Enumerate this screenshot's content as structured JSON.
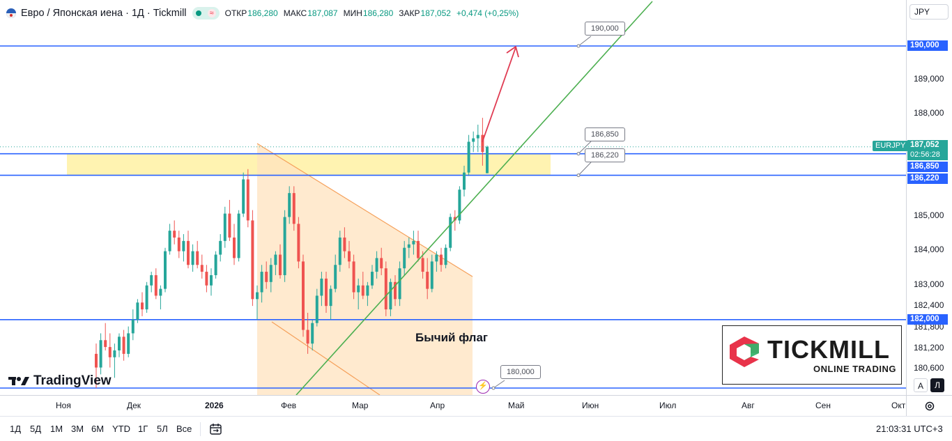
{
  "legend": {
    "title": "Евро / Японская иена · 1Д · Tickmill",
    "open_label": "ОТКР",
    "open": "186,280",
    "high_label": "МАКС",
    "high": "187,087",
    "low_label": "МИН",
    "low": "186,280",
    "close_label": "ЗАКР",
    "close": "187,052",
    "change": "+0,474 (+0,25%)",
    "flag_glyph": "≈"
  },
  "currency_button": "JPY",
  "price_scale": {
    "ticks": [
      "189,000",
      "188,000",
      "185,000",
      "184,000",
      "183,000",
      "182,400",
      "181,800",
      "181,200",
      "180,600"
    ]
  },
  "badges": {
    "b190": "190,000",
    "symbol": "EURJPY",
    "last_price": "187,052",
    "countdown": "02:56:28",
    "b186850": "186,850",
    "b186220": "186,220",
    "b182000": "182,000"
  },
  "callouts": {
    "c190": "190,000",
    "c186850": "186,850",
    "c186220": "186,220",
    "c180": "180,000"
  },
  "annotation": "Бычий флаг",
  "brand": {
    "tradingview": "TradingView",
    "tickmill": "TICKMILL",
    "tickmill_sub": "ONLINE TRADING"
  },
  "time_axis": [
    "Ноя",
    "Дек",
    "2026",
    "Фев",
    "Мар",
    "Апр",
    "Май",
    "Июн",
    "Июл",
    "Авг",
    "Сен",
    "Окт"
  ],
  "scale_modes": {
    "auto": "А",
    "log": "Л"
  },
  "bottom": {
    "ranges": [
      "1Д",
      "5Д",
      "1М",
      "3М",
      "6М",
      "YTD",
      "1Г",
      "5Л",
      "Все"
    ],
    "clock": "21:03:31 UTC+3"
  },
  "colors": {
    "up": "#26a69a",
    "down": "#ef5350",
    "level_line": "#2962ff",
    "trend_line": "#4caf50",
    "arrow": "#e03b52",
    "zone": "#fff2a8",
    "flag_fill": "#ffe3bf",
    "badge_blue": "#2962ff",
    "badge_green": "#26a69a"
  },
  "chart_data": {
    "type": "candlestick",
    "symbol": "EURJPY",
    "interval": "1Д",
    "price_range": [
      179.8,
      191.3
    ],
    "levels": [
      190.0,
      186.85,
      186.22,
      182.0,
      180.0
    ],
    "candles": [
      [
        181.0,
        181.3,
        180.0,
        180.6
      ],
      [
        180.6,
        181.6,
        180.4,
        181.4
      ],
      [
        181.4,
        181.9,
        181.1,
        181.2
      ],
      [
        181.2,
        181.6,
        180.6,
        180.9
      ],
      [
        180.9,
        181.3,
        180.3,
        181.1
      ],
      [
        181.1,
        181.6,
        180.9,
        181.5
      ],
      [
        181.5,
        181.7,
        180.8,
        181.0
      ],
      [
        181.0,
        181.8,
        180.9,
        181.6
      ],
      [
        181.6,
        182.3,
        181.4,
        182.0
      ],
      [
        182.0,
        182.6,
        181.9,
        182.5
      ],
      [
        182.5,
        182.8,
        182.1,
        182.3
      ],
      [
        182.3,
        183.1,
        182.2,
        183.0
      ],
      [
        183.0,
        183.4,
        182.8,
        183.3
      ],
      [
        183.3,
        183.5,
        182.6,
        182.7
      ],
      [
        182.7,
        183.0,
        182.3,
        182.9
      ],
      [
        182.9,
        184.1,
        182.8,
        184.0
      ],
      [
        184.0,
        184.8,
        183.9,
        184.6
      ],
      [
        184.6,
        184.9,
        184.2,
        184.4
      ],
      [
        184.4,
        184.6,
        183.8,
        184.0
      ],
      [
        184.0,
        184.5,
        183.7,
        184.3
      ],
      [
        184.3,
        184.6,
        183.5,
        183.6
      ],
      [
        183.6,
        184.2,
        183.4,
        184.0
      ],
      [
        184.0,
        184.3,
        183.5,
        183.6
      ],
      [
        183.6,
        183.9,
        183.2,
        183.4
      ],
      [
        183.4,
        183.6,
        182.8,
        183.0
      ],
      [
        183.0,
        183.5,
        182.7,
        183.3
      ],
      [
        183.3,
        184.0,
        183.2,
        183.9
      ],
      [
        183.9,
        184.5,
        183.7,
        184.3
      ],
      [
        184.3,
        185.3,
        184.1,
        185.1
      ],
      [
        185.1,
        185.5,
        184.3,
        184.4
      ],
      [
        184.4,
        184.8,
        183.6,
        183.8
      ],
      [
        183.8,
        185.2,
        183.7,
        185.1
      ],
      [
        185.1,
        186.3,
        185.0,
        186.1
      ],
      [
        186.1,
        186.4,
        184.7,
        184.9
      ],
      [
        184.9,
        185.2,
        182.4,
        182.6
      ],
      [
        182.6,
        183.0,
        182.0,
        182.8
      ],
      [
        182.8,
        183.6,
        182.5,
        183.4
      ],
      [
        183.4,
        183.7,
        182.9,
        183.1
      ],
      [
        183.1,
        183.8,
        182.8,
        183.6
      ],
      [
        183.6,
        184.0,
        183.3,
        183.9
      ],
      [
        183.9,
        184.2,
        183.2,
        183.3
      ],
      [
        183.3,
        185.2,
        183.1,
        185.0
      ],
      [
        185.0,
        185.9,
        184.8,
        185.7
      ],
      [
        185.7,
        185.9,
        184.6,
        184.8
      ],
      [
        184.8,
        185.0,
        183.5,
        183.7
      ],
      [
        183.7,
        183.9,
        181.5,
        181.7
      ],
      [
        181.7,
        182.2,
        181.0,
        181.3
      ],
      [
        181.3,
        182.0,
        181.1,
        181.9
      ],
      [
        181.9,
        182.9,
        181.8,
        182.7
      ],
      [
        182.7,
        183.4,
        182.4,
        183.2
      ],
      [
        183.2,
        183.4,
        182.2,
        182.4
      ],
      [
        182.4,
        183.0,
        182.0,
        182.9
      ],
      [
        182.9,
        183.9,
        182.8,
        183.6
      ],
      [
        183.6,
        184.6,
        183.4,
        184.4
      ],
      [
        184.4,
        184.7,
        183.8,
        184.0
      ],
      [
        184.0,
        184.3,
        183.5,
        183.7
      ],
      [
        183.7,
        183.9,
        182.6,
        182.8
      ],
      [
        182.8,
        183.2,
        182.3,
        183.0
      ],
      [
        183.0,
        183.4,
        182.6,
        182.7
      ],
      [
        182.7,
        183.1,
        182.4,
        183.0
      ],
      [
        183.0,
        183.6,
        182.9,
        183.4
      ],
      [
        183.4,
        184.0,
        183.2,
        183.8
      ],
      [
        183.8,
        184.1,
        183.3,
        183.5
      ],
      [
        183.5,
        183.7,
        182.1,
        182.3
      ],
      [
        182.3,
        183.2,
        182.1,
        183.1
      ],
      [
        183.1,
        183.3,
        182.4,
        182.6
      ],
      [
        182.6,
        183.7,
        182.4,
        183.5
      ],
      [
        183.5,
        184.3,
        183.3,
        184.1
      ],
      [
        184.1,
        184.4,
        183.8,
        184.2
      ],
      [
        184.2,
        184.6,
        183.9,
        184.3
      ],
      [
        184.3,
        184.6,
        183.7,
        183.8
      ],
      [
        183.8,
        184.0,
        183.2,
        183.4
      ],
      [
        183.4,
        183.8,
        182.6,
        182.9
      ],
      [
        182.9,
        183.9,
        182.8,
        183.7
      ],
      [
        183.7,
        184.0,
        183.4,
        183.9
      ],
      [
        183.9,
        184.1,
        183.4,
        183.6
      ],
      [
        183.6,
        184.2,
        183.5,
        184.1
      ],
      [
        184.1,
        185.1,
        184.0,
        185.0
      ],
      [
        185.0,
        185.2,
        184.6,
        184.9
      ],
      [
        184.9,
        185.9,
        184.8,
        185.8
      ],
      [
        185.8,
        186.5,
        185.6,
        186.3
      ],
      [
        186.3,
        187.4,
        186.2,
        187.2
      ],
      [
        187.2,
        187.5,
        186.9,
        187.3
      ],
      [
        187.3,
        187.7,
        186.9,
        187.4
      ],
      [
        187.4,
        187.9,
        186.5,
        186.9
      ],
      [
        186.28,
        187.087,
        186.28,
        187.052
      ]
    ],
    "bullish_flag_label": "Бычий флаг"
  }
}
